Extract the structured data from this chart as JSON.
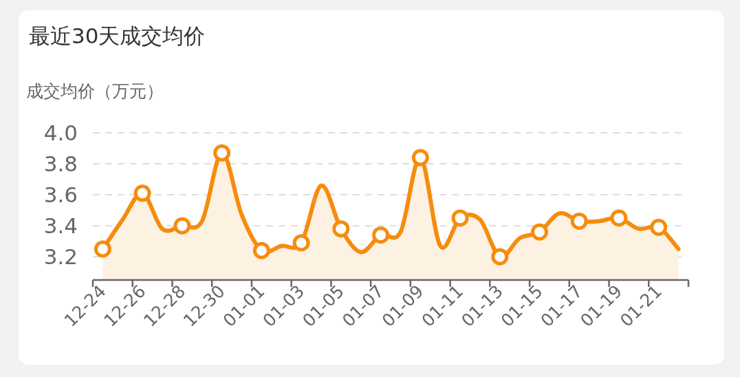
{
  "chart_data": {
    "type": "area",
    "title": "最近30天成交均价",
    "ylabel": "成交均价（万元）",
    "categories": [
      "12-24",
      null,
      "12-26",
      null,
      "12-28",
      null,
      "12-30",
      null,
      "01-01",
      null,
      "01-03",
      null,
      "01-05",
      null,
      "01-07",
      null,
      "01-09",
      null,
      "01-11",
      null,
      "01-13",
      null,
      "01-15",
      null,
      "01-17",
      null,
      "01-19",
      null,
      "01-21",
      null
    ],
    "values": [
      3.25,
      3.44,
      3.61,
      3.38,
      3.4,
      3.43,
      3.87,
      3.47,
      3.24,
      3.27,
      3.29,
      3.66,
      3.38,
      3.23,
      3.34,
      3.36,
      3.84,
      3.27,
      3.45,
      3.44,
      3.2,
      3.32,
      3.36,
      3.48,
      3.43,
      3.43,
      3.45,
      3.38,
      3.39,
      3.25
    ],
    "color": "#f68c0e",
    "ylim": [
      3.05,
      4.0
    ],
    "yticks": [
      {
        "value": 3.2,
        "label": "3.2"
      },
      {
        "value": 3.4,
        "label": "3.4"
      },
      {
        "value": 3.6,
        "label": "3.6"
      },
      {
        "value": 3.8,
        "label": "3.8"
      },
      {
        "value": 4.0,
        "label": "4.0"
      }
    ],
    "grid": "y",
    "marker": "circle",
    "line_style": "solid"
  }
}
